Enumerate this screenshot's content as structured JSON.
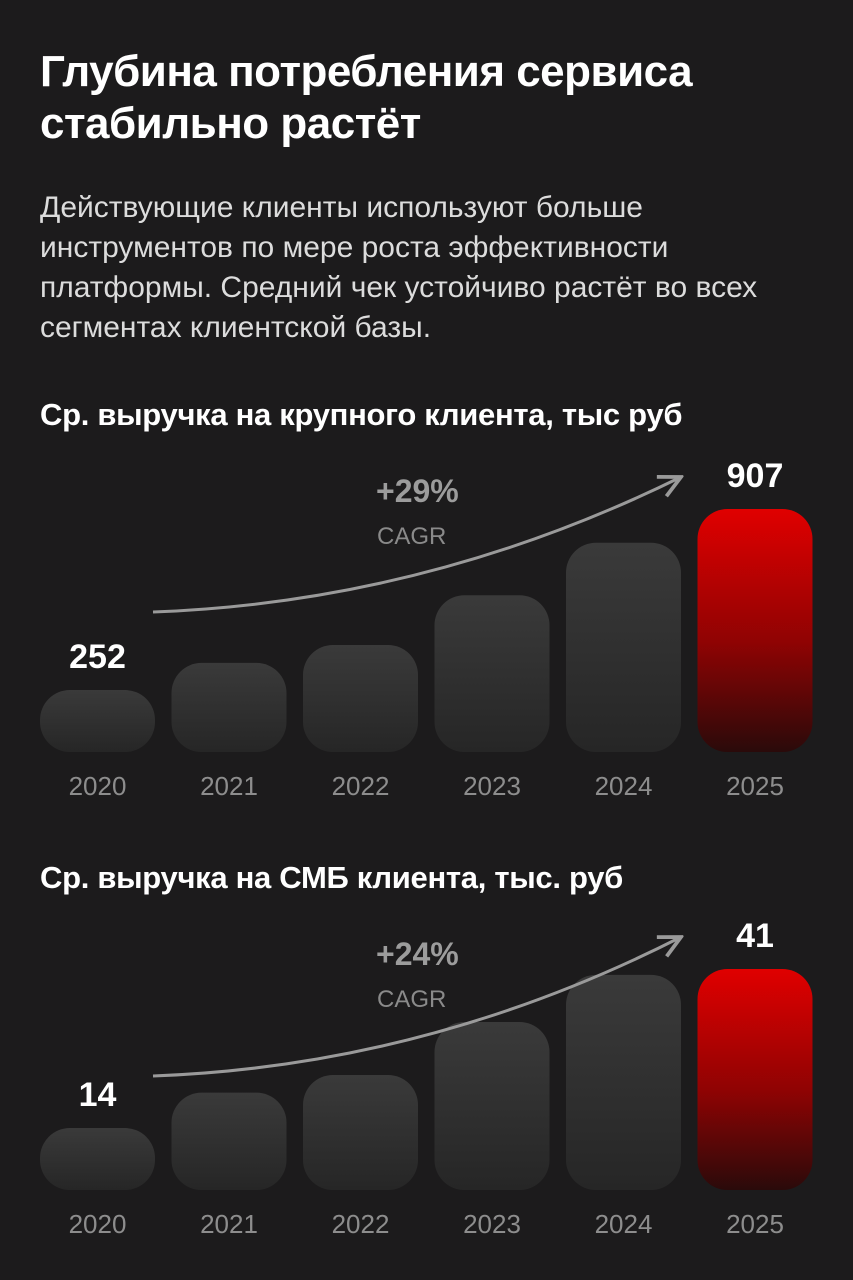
{
  "title": "Глубина потребления сервиса стабильно растёт",
  "description": "Действующие клиенты используют больше инструментов по мере роста эффективности платформы. Средний чек устойчиво растёт во всех сегментах клиентской базы.",
  "colors": {
    "background": "#1c1b1c",
    "bar": "#3a3a3a",
    "highlight": "#e00000",
    "arrow": "#9a9a9a"
  },
  "chart_data": [
    {
      "type": "bar",
      "title": "Ср. выручка на крупного клиента, тыс руб",
      "categories": [
        "2020",
        "2021",
        "2022",
        "2023",
        "2024",
        "2025"
      ],
      "values": [
        252,
        350,
        415,
        595,
        785,
        907
      ],
      "data_labels": {
        "2020": "252",
        "2025": "907"
      },
      "highlight": "2025",
      "growth_label": "+29%",
      "growth_caption": "CAGR",
      "ylim": [
        0,
        907
      ],
      "grid": false,
      "legend": "none"
    },
    {
      "type": "bar",
      "title": "Ср. выручка на СМБ клиента, тыс. руб",
      "categories": [
        "2020",
        "2021",
        "2022",
        "2023",
        "2024",
        "2025"
      ],
      "values": [
        14,
        20,
        23,
        32,
        40,
        41
      ],
      "data_labels": {
        "2020": "14",
        "2025": "41"
      },
      "highlight": "2025",
      "growth_label": "+24%",
      "growth_caption": "CAGR",
      "ylim": [
        0,
        41
      ],
      "grid": false,
      "legend": "none"
    }
  ]
}
